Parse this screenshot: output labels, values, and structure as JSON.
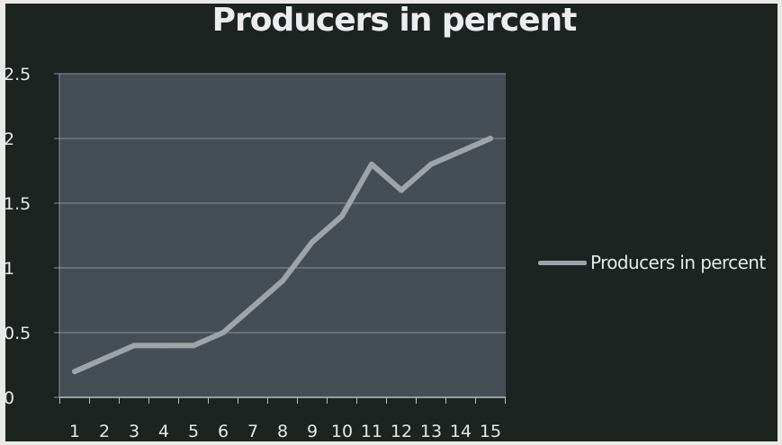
{
  "chart_data": {
    "type": "line",
    "title": "Producers in percent",
    "xlabel": "",
    "ylabel": "",
    "categories": [
      "1",
      "2",
      "3",
      "4",
      "5",
      "6",
      "7",
      "8",
      "9",
      "10",
      "11",
      "12",
      "13",
      "14",
      "15"
    ],
    "series": [
      {
        "name": "Producers in percent",
        "values": [
          0.2,
          0.3,
          0.4,
          0.4,
          0.4,
          0.5,
          0.7,
          0.9,
          1.2,
          1.4,
          1.8,
          1.6,
          1.8,
          1.9,
          2.0
        ]
      }
    ],
    "ylim": [
      0,
      2.5
    ],
    "yticks": [
      "0",
      "0.5",
      "1",
      "1.5",
      "2",
      "2.5"
    ],
    "grid": true,
    "legend_position": "right",
    "colors": {
      "background": "#1c2321",
      "plot_area": "#454e54",
      "line": "#9ea4a7",
      "gridline": "#8c9396",
      "text": "#e6e8e9"
    }
  }
}
